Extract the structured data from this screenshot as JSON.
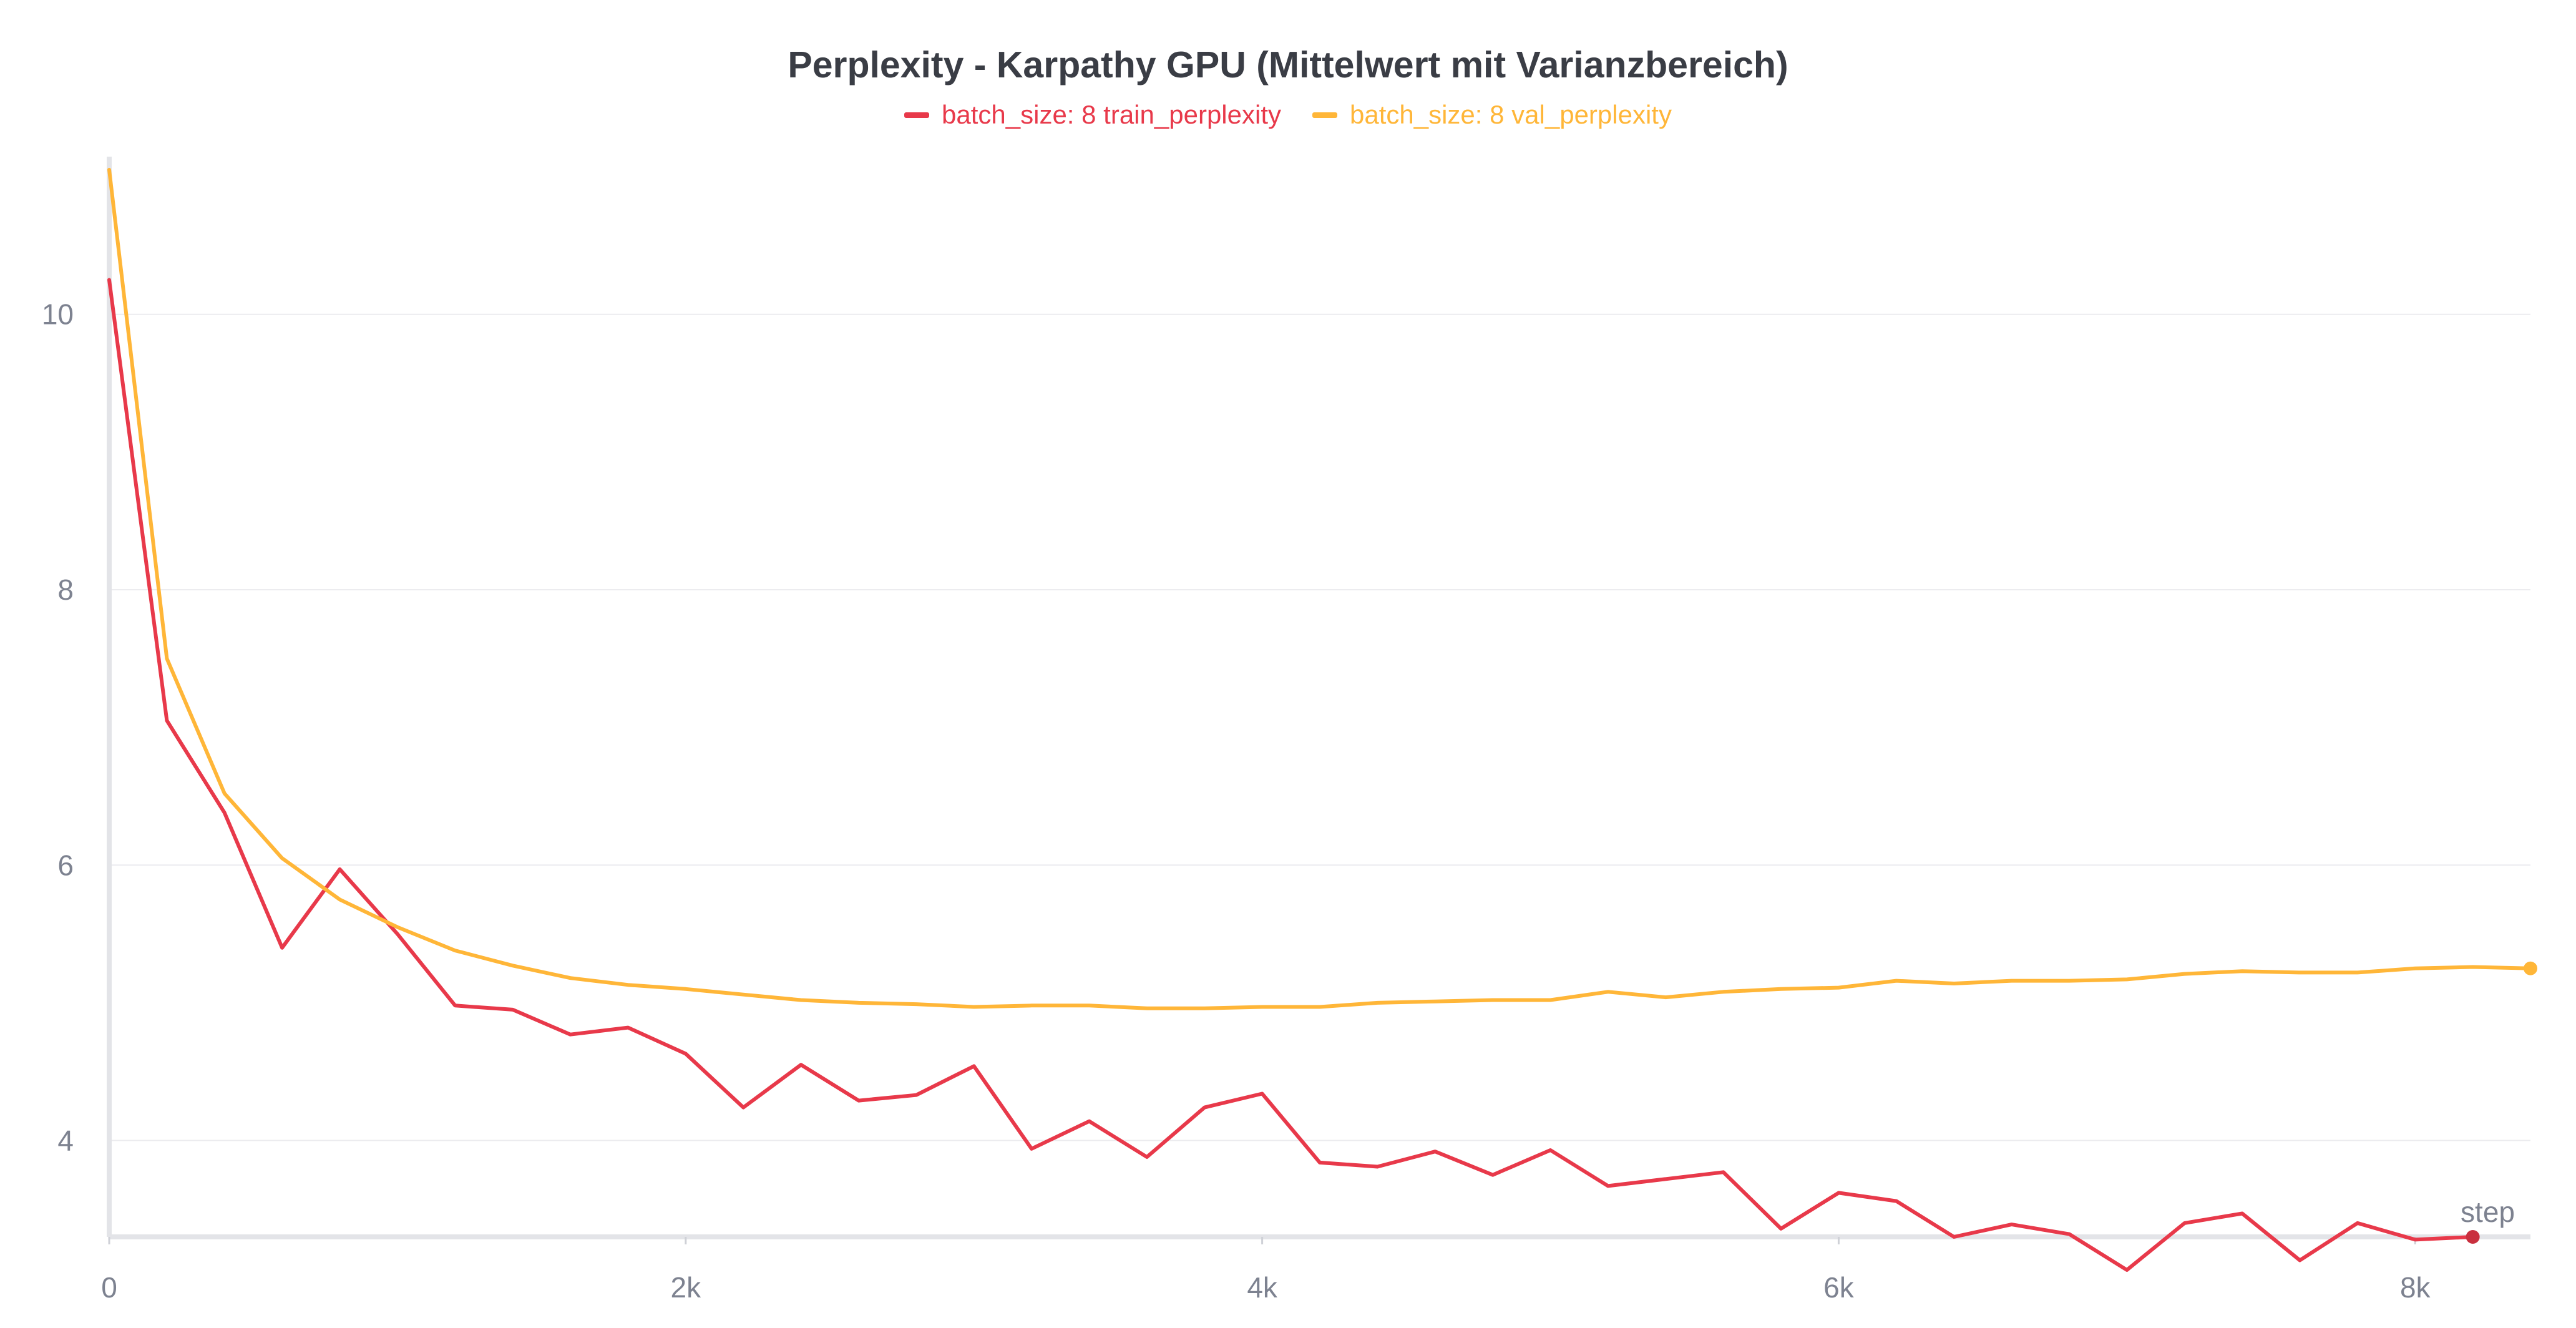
{
  "chart_data": {
    "type": "line",
    "title": "Perplexity - Karpathy GPU (Mittelwert mit Varianzbereich)",
    "xlabel": "step",
    "ylabel": "",
    "xlim": [
      0,
      8400
    ],
    "ylim": [
      3.3,
      11.1
    ],
    "grid": true,
    "legend_position": "top-center",
    "x_ticks": [
      {
        "value": 0,
        "label": "0"
      },
      {
        "value": 2000,
        "label": "2k"
      },
      {
        "value": 4000,
        "label": "4k"
      },
      {
        "value": 6000,
        "label": "6k"
      },
      {
        "value": 8000,
        "label": "8k"
      }
    ],
    "y_ticks": [
      {
        "value": 4,
        "label": "4"
      },
      {
        "value": 6,
        "label": "6"
      },
      {
        "value": 8,
        "label": "8"
      },
      {
        "value": 10,
        "label": "10"
      }
    ],
    "series": [
      {
        "name": "batch_size: 8 train_perplexity",
        "color": "#e8394a",
        "x": [
          0,
          200,
          400,
          600,
          800,
          1000,
          1200,
          1400,
          1600,
          1800,
          2000,
          2200,
          2400,
          2600,
          2800,
          3000,
          3200,
          3400,
          3600,
          3800,
          4000,
          4200,
          4400,
          4600,
          4800,
          5000,
          5200,
          5400,
          5600,
          5800,
          6000,
          6200,
          6400,
          6600,
          6800,
          7000,
          7200,
          7400,
          7600,
          7800,
          8000,
          8200
        ],
        "values": [
          10.25,
          7.05,
          6.38,
          5.4,
          5.97,
          5.5,
          4.98,
          4.95,
          4.77,
          4.82,
          4.63,
          4.24,
          4.55,
          4.29,
          4.33,
          4.54,
          3.94,
          4.14,
          3.88,
          4.24,
          4.34,
          3.84,
          3.81,
          3.92,
          3.75,
          3.93,
          3.67,
          3.72,
          3.77,
          3.36,
          3.62,
          3.56,
          3.3,
          3.39,
          3.32,
          3.06,
          3.4,
          3.47,
          3.13,
          3.4,
          3.28,
          3.3
        ]
      },
      {
        "name": "batch_size: 8 val_perplexity",
        "color": "#ffb638",
        "x": [
          0,
          200,
          400,
          600,
          800,
          1000,
          1200,
          1400,
          1600,
          1800,
          2000,
          2200,
          2400,
          2600,
          2800,
          3000,
          3200,
          3400,
          3600,
          3800,
          4000,
          4200,
          4400,
          4600,
          4800,
          5000,
          5200,
          5400,
          5600,
          5800,
          6000,
          6200,
          6400,
          6600,
          6800,
          7000,
          7200,
          7400,
          7600,
          7800,
          8000,
          8200,
          8400
        ],
        "values": [
          11.05,
          7.5,
          6.52,
          6.05,
          5.75,
          5.55,
          5.38,
          5.27,
          5.18,
          5.13,
          5.1,
          5.06,
          5.02,
          5.0,
          4.99,
          4.97,
          4.98,
          4.98,
          4.96,
          4.96,
          4.97,
          4.97,
          5.0,
          5.01,
          5.02,
          5.02,
          5.08,
          5.04,
          5.08,
          5.1,
          5.11,
          5.16,
          5.14,
          5.16,
          5.16,
          5.17,
          5.21,
          5.23,
          5.22,
          5.22,
          5.25,
          5.26,
          5.25
        ]
      }
    ]
  }
}
